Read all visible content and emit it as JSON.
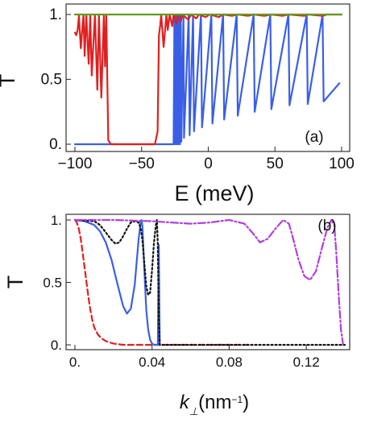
{
  "chart_data": [
    {
      "type": "line",
      "panel_label": "(a)",
      "xlabel": "E (meV)",
      "ylabel": "T",
      "xlim": [
        -100,
        100
      ],
      "ylim": [
        0,
        1
      ],
      "xticks": [
        -100,
        -50,
        0,
        50,
        100
      ],
      "xtick_labels": [
        "−100",
        "−50",
        "0",
        "50",
        "100"
      ],
      "yticks": [
        0,
        0.5,
        1
      ],
      "ytick_labels": [
        "0.",
        "0.5",
        "1."
      ],
      "legend": "none",
      "grid": false,
      "series": [
        {
          "color": "#3a5fe6",
          "style": "solid",
          "x": [
            -100,
            -30,
            -26,
            -25.4,
            -25,
            -24.6,
            -24.2,
            -23.6,
            -23.2,
            -22.6,
            -22.2,
            -21.6,
            -21.2,
            -20.6,
            -20.2,
            -18.6,
            -18.2,
            -14.7,
            -14,
            -11.4,
            -10.7,
            -5.5,
            -4.7,
            2.3,
            3.1,
            11.1,
            11.9,
            21.3,
            22.1,
            34.0,
            34.8,
            46.5,
            47.3,
            60.1,
            60.9,
            73.8,
            74.6,
            85.7,
            86.5,
            98.3
          ],
          "y": [
            0,
            0,
            0,
            1,
            0,
            1,
            0,
            1,
            0,
            1,
            0,
            1,
            0,
            1,
            0.02,
            1,
            0.05,
            1,
            0.07,
            1,
            0.1,
            1,
            0.13,
            1,
            0.16,
            1,
            0.19,
            1,
            0.22,
            1,
            0.25,
            1,
            0.27,
            1,
            0.3,
            1,
            0.31,
            1,
            0.33,
            0.47
          ]
        },
        {
          "color": "#e02020",
          "style": "solid",
          "x": [
            -100,
            -99,
            -98,
            -97,
            -95.6,
            -93.6,
            -92.7,
            -91.5,
            -89.7,
            -88.5,
            -87.4,
            -85,
            -83.2,
            -82,
            -80.2,
            -78.3,
            -77.4,
            -76.5,
            -75,
            -73,
            -72,
            -60,
            -40,
            -38,
            -37,
            -36,
            -35.3,
            -33.5,
            -31.4,
            -30.4,
            -29,
            -27,
            -26,
            -23.6,
            -22.8,
            -20.5,
            -19.5,
            -15,
            -13,
            -9,
            -7,
            -2,
            1,
            8,
            11,
            18,
            22,
            30,
            34,
            42,
            47,
            56,
            60,
            72,
            75,
            86,
            89,
            100
          ],
          "y": [
            0.86,
            0.84,
            0.88,
            0.99,
            0.74,
            1,
            0.68,
            1,
            0.62,
            1,
            0.53,
            1,
            0.42,
            1,
            0.36,
            1,
            0.6,
            1,
            0.03,
            0,
            0,
            0,
            0,
            0.1,
            0.84,
            0.92,
            1,
            0.75,
            1,
            0.88,
            1,
            0.91,
            1,
            0.93,
            1,
            0.95,
            1,
            0.96,
            1,
            0.97,
            1,
            0.98,
            1,
            0.98,
            1,
            0.99,
            1,
            0.99,
            1,
            0.99,
            1,
            0.99,
            1,
            0.99,
            1,
            0.99,
            1,
            1
          ]
        },
        {
          "color": "#5f9e1f",
          "style": "solid",
          "x": [
            -100,
            100
          ],
          "y": [
            1,
            1
          ]
        }
      ]
    },
    {
      "type": "line",
      "panel_label": "(b)",
      "xlabel_main": "k",
      "xlabel_sub": "⊥",
      "xlabel_unit_pre": "(nm",
      "xlabel_unit_sup": "−1",
      "xlabel_unit_post": ")",
      "ylabel": "T",
      "xlim": [
        0,
        0.14
      ],
      "ylim": [
        0,
        1
      ],
      "xticks": [
        0,
        0.04,
        0.08,
        0.12
      ],
      "xtick_labels": [
        "0.",
        "0.04",
        "0.08",
        "0.12"
      ],
      "yticks": [
        0,
        0.5,
        1
      ],
      "ytick_labels": [
        "0.",
        "0.5",
        "1."
      ],
      "legend": "none",
      "grid": false,
      "series": [
        {
          "color": "#e02020",
          "style": "dashed",
          "x": [
            0,
            0.001,
            0.002,
            0.003,
            0.004,
            0.005,
            0.006,
            0.007,
            0.008,
            0.009,
            0.01,
            0.012,
            0.014,
            0.016,
            0.018,
            0.02,
            0.025,
            0.03,
            0.04,
            0.05,
            0.06,
            0.07,
            0.08,
            0.09
          ],
          "y": [
            1,
            0.98,
            0.93,
            0.85,
            0.74,
            0.62,
            0.5,
            0.38,
            0.28,
            0.2,
            0.14,
            0.08,
            0.05,
            0.03,
            0.02,
            0.01,
            0,
            0,
            0,
            0,
            0,
            0,
            0,
            0
          ]
        },
        {
          "color": "#3a5fe6",
          "style": "solid",
          "x": [
            0,
            0.005,
            0.01,
            0.013,
            0.016,
            0.019,
            0.022,
            0.025,
            0.027,
            0.029,
            0.031,
            0.033,
            0.034,
            0.0345,
            0.035,
            0.036,
            0.037,
            0.038,
            0.039,
            0.04,
            0.041,
            0.042,
            0.043,
            0.0435,
            0.044
          ],
          "y": [
            1,
            0.99,
            0.96,
            0.91,
            0.82,
            0.68,
            0.49,
            0.31,
            0.25,
            0.29,
            0.48,
            0.84,
            0.97,
            1,
            0.95,
            0.6,
            0.28,
            0.12,
            0.04,
            0.01,
            0,
            0,
            0,
            0.8,
            0
          ]
        },
        {
          "color": "#111111",
          "style": "dotted",
          "x": [
            0,
            0.01,
            0.013,
            0.016,
            0.019,
            0.021,
            0.023,
            0.025,
            0.027,
            0.029,
            0.031,
            0.033,
            0.034,
            0.035,
            0.036,
            0.037,
            0.038,
            0.039,
            0.04,
            0.041,
            0.042,
            0.0425,
            0.043,
            0.0435,
            0.044,
            0.045,
            0.06,
            0.08,
            0.1,
            0.12,
            0.14
          ],
          "y": [
            1,
            0.99,
            0.96,
            0.9,
            0.84,
            0.81,
            0.82,
            0.87,
            0.93,
            0.98,
            0.99,
            0.98,
            0.94,
            0.84,
            0.65,
            0.47,
            0.4,
            0.42,
            0.6,
            0.82,
            0.96,
            1,
            0.8,
            0.2,
            0,
            0,
            0,
            0,
            0,
            0,
            0
          ]
        },
        {
          "color": "#b23ee0",
          "style": "dashdot",
          "x": [
            0,
            0.02,
            0.04,
            0.05,
            0.06,
            0.07,
            0.08,
            0.088,
            0.093,
            0.096,
            0.1,
            0.104,
            0.108,
            0.111,
            0.113,
            0.116,
            0.119,
            0.122,
            0.125,
            0.128,
            0.131,
            0.133,
            0.1345,
            0.1355,
            0.137,
            0.138,
            0.139
          ],
          "y": [
            1,
            1,
            0.99,
            0.98,
            0.97,
            0.98,
            1,
            0.97,
            0.88,
            0.82,
            0.85,
            0.93,
            1,
            0.97,
            0.86,
            0.68,
            0.55,
            0.52,
            0.59,
            0.77,
            0.94,
            1,
            0.96,
            0.75,
            0.35,
            0.12,
            0.01
          ]
        }
      ]
    }
  ]
}
